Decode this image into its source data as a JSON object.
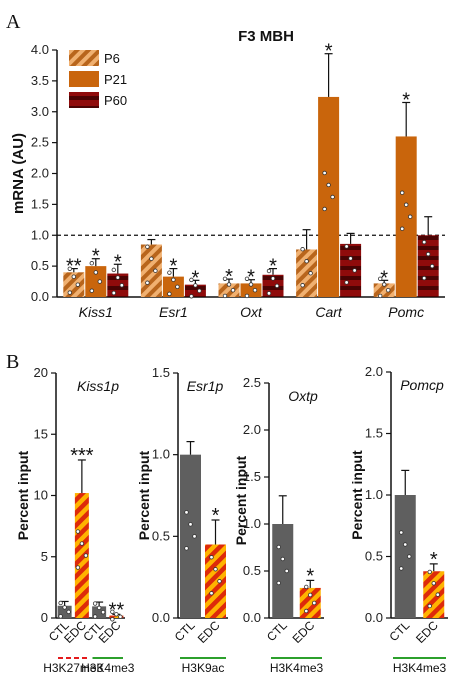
{
  "panel_labels": {
    "a": "A",
    "b": "B"
  },
  "colors": {
    "p6_fill": "#f0b070",
    "p6_stripe": "#b8651c",
    "p21_fill": "#c9650c",
    "p60_fill": "#8f0b0b",
    "p60_stripe": "#4a0303",
    "ctl_fill": "#5f5f5f",
    "edc_fill": "#ffb300",
    "edc_stripe": "#dd2a0a",
    "k27_underline": "#e41a1c",
    "k4_underline": "#2ca02c"
  },
  "chart_data": [
    {
      "type": "bar",
      "title": "F3 MBH",
      "ylabel": "mRNA (AU)",
      "ylim": [
        0,
        4.0
      ],
      "yticks": [
        "0.0",
        "0.5",
        "1.0",
        "1.5",
        "2.0",
        "2.5",
        "3.0",
        "3.5",
        "4.0"
      ],
      "categories": [
        "Kiss1",
        "Esr1",
        "Oxt",
        "Cart",
        "Pomc"
      ],
      "reference_line": 1.0,
      "legend": [
        "P6",
        "P21",
        "P60"
      ],
      "legend_position": "top-left",
      "series": [
        {
          "name": "P6",
          "values": [
            0.4,
            0.85,
            0.22,
            0.77,
            0.22
          ],
          "errors": [
            0.06,
            0.08,
            0.07,
            0.32,
            0.05
          ],
          "stars": [
            "**",
            "",
            "*",
            "",
            "*"
          ]
        },
        {
          "name": "P21",
          "values": [
            0.5,
            0.33,
            0.22,
            3.24,
            2.6
          ],
          "errors": [
            0.12,
            0.13,
            0.06,
            0.7,
            0.55
          ],
          "stars": [
            "*",
            "*",
            "*",
            "*",
            "*"
          ]
        },
        {
          "name": "P60",
          "values": [
            0.38,
            0.2,
            0.36,
            0.86,
            1.0
          ],
          "errors": [
            0.15,
            0.07,
            0.1,
            0.17,
            0.3
          ],
          "stars": [
            "*",
            "*",
            "*",
            "",
            ""
          ]
        }
      ]
    },
    {
      "type": "bar",
      "title": "Kiss1p",
      "ylabel": "Percent input",
      "ylim": [
        0,
        20
      ],
      "yticks": [
        "0",
        "5",
        "10",
        "15",
        "20"
      ],
      "groups": [
        "H3K27me3",
        "H3K4me3"
      ],
      "categories": [
        "CTL",
        "EDC",
        "CTL",
        "EDC"
      ],
      "values": [
        1.0,
        10.2,
        0.95,
        0.2
      ],
      "errors": [
        0.35,
        2.7,
        0.35,
        0.1
      ],
      "stars": [
        "",
        "***",
        "",
        "**"
      ]
    },
    {
      "type": "bar",
      "title": "Esr1p",
      "ylabel": "Percent input",
      "ylim": [
        0,
        1.5
      ],
      "yticks": [
        "0.0",
        "0.5",
        "1.0",
        "1.5"
      ],
      "groups": [
        "H3K9ac"
      ],
      "categories": [
        "CTL",
        "EDC"
      ],
      "values": [
        1.0,
        0.45
      ],
      "errors": [
        0.08,
        0.15
      ],
      "stars": [
        "",
        "*"
      ]
    },
    {
      "type": "bar",
      "title": "Oxtp",
      "ylabel": "Percent input",
      "ylim": [
        0,
        2.5
      ],
      "yticks": [
        "0.0",
        "0.5",
        "1.0",
        "1.5",
        "2.0",
        "2.5"
      ],
      "groups": [
        "H3K4me3"
      ],
      "categories": [
        "CTL",
        "EDC"
      ],
      "values": [
        1.0,
        0.32
      ],
      "errors": [
        0.3,
        0.08
      ],
      "stars": [
        "",
        "*"
      ]
    },
    {
      "type": "bar",
      "title": "Pomcp",
      "ylabel": "Percent input",
      "ylim": [
        0,
        2.0
      ],
      "yticks": [
        "0.0",
        "0.5",
        "1.0",
        "1.5",
        "2.0"
      ],
      "groups": [
        "H3K4me3"
      ],
      "categories": [
        "CTL",
        "EDC"
      ],
      "values": [
        1.0,
        0.38
      ],
      "errors": [
        0.2,
        0.06
      ],
      "stars": [
        "",
        "*"
      ]
    }
  ]
}
